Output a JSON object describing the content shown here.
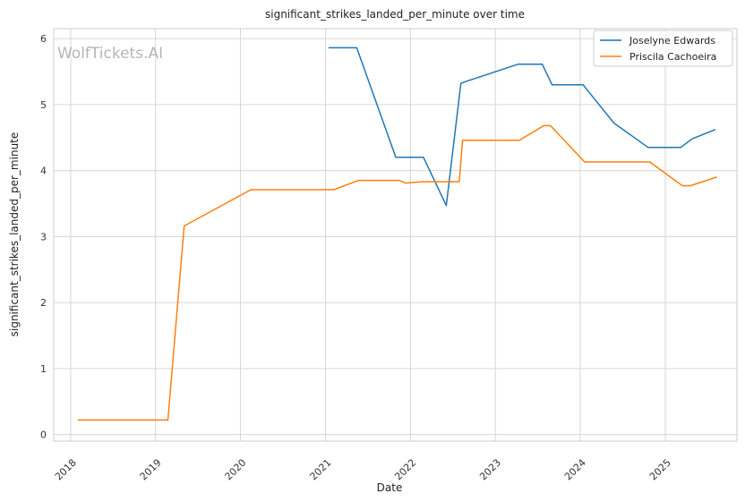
{
  "chart_data": {
    "type": "line",
    "title": "significant_strikes_landed_per_minute over time",
    "xlabel": "Date",
    "ylabel": "significant_strikes_landed_per_minute",
    "watermark": "WolfTickets.AI",
    "x_axis": "date",
    "xlim": [
      "2017-10-20",
      "2025-11-05"
    ],
    "ylim": [
      -0.1,
      6.15
    ],
    "x_tick_labels": [
      "2018",
      "2019",
      "2020",
      "2021",
      "2022",
      "2023",
      "2024",
      "2025"
    ],
    "y_ticks": [
      0,
      1,
      2,
      3,
      4,
      5,
      6
    ],
    "grid": true,
    "legend_position": "top-right",
    "series": [
      {
        "name": "Joselyne Edwards",
        "color": "#1f77b4",
        "points": [
          [
            "2021-01-16",
            5.86
          ],
          [
            "2021-05-15",
            5.86
          ],
          [
            "2021-10-30",
            4.2
          ],
          [
            "2022-02-26",
            4.2
          ],
          [
            "2022-06-04",
            3.47
          ],
          [
            "2022-08-06",
            5.32
          ],
          [
            "2022-08-20",
            5.34
          ],
          [
            "2023-04-08",
            5.61
          ],
          [
            "2023-07-22",
            5.61
          ],
          [
            "2023-09-02",
            5.3
          ],
          [
            "2024-01-13",
            5.3
          ],
          [
            "2024-05-25",
            4.72
          ],
          [
            "2024-10-19",
            4.35
          ],
          [
            "2025-03-08",
            4.35
          ],
          [
            "2025-04-26",
            4.48
          ],
          [
            "2025-08-02",
            4.62
          ]
        ]
      },
      {
        "name": "Priscila Cachoeira",
        "color": "#ff7f0e",
        "points": [
          [
            "2018-02-03",
            0.22
          ],
          [
            "2019-02-23",
            0.22
          ],
          [
            "2019-05-04",
            3.16
          ],
          [
            "2020-02-15",
            3.71
          ],
          [
            "2021-02-06",
            3.71
          ],
          [
            "2021-05-22",
            3.85
          ],
          [
            "2021-11-13",
            3.85
          ],
          [
            "2021-12-11",
            3.81
          ],
          [
            "2022-02-19",
            3.83
          ],
          [
            "2022-07-30",
            3.83
          ],
          [
            "2022-08-13",
            4.46
          ],
          [
            "2023-04-15",
            4.46
          ],
          [
            "2023-07-29",
            4.68
          ],
          [
            "2023-08-26",
            4.68
          ],
          [
            "2024-01-20",
            4.13
          ],
          [
            "2024-10-26",
            4.13
          ],
          [
            "2025-03-15",
            3.77
          ],
          [
            "2025-04-19",
            3.77
          ],
          [
            "2025-08-09",
            3.9
          ]
        ]
      }
    ]
  }
}
